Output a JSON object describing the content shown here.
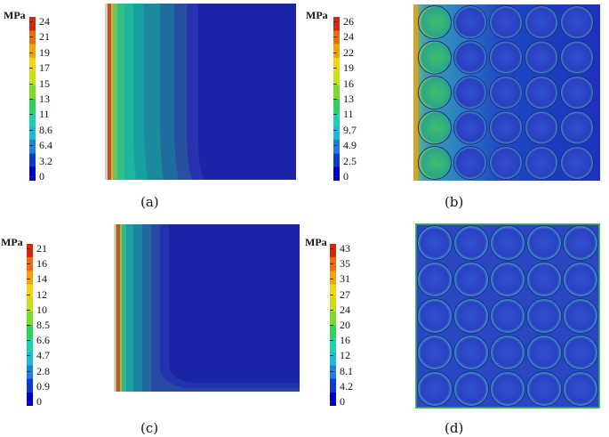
{
  "panels": [
    {
      "id": "a",
      "caption": "(a)",
      "colorbar": {
        "unit": "MPa",
        "ticks": [
          "24",
          "21",
          "19",
          "17",
          "15",
          "13",
          "11",
          "8.6",
          "6.4",
          "3.2",
          "0"
        ]
      }
    },
    {
      "id": "b",
      "caption": "(b)",
      "colorbar": {
        "unit": "MPa",
        "ticks": [
          "26",
          "24",
          "22",
          "19",
          "16",
          "13",
          "11",
          "9.7",
          "4.9",
          "2.5",
          "0"
        ]
      }
    },
    {
      "id": "c",
      "caption": "(c)",
      "colorbar": {
        "unit": "MPa",
        "ticks": [
          "21",
          "16",
          "14",
          "12",
          "10",
          "8.5",
          "6.6",
          "4.7",
          "2.8",
          "0.9",
          "0"
        ]
      }
    },
    {
      "id": "d",
      "caption": "(d)",
      "colorbar": {
        "unit": "MPa",
        "ticks": [
          "43",
          "35",
          "31",
          "27",
          "24",
          "20",
          "16",
          "12",
          "8.1",
          "4.2",
          "0"
        ]
      }
    }
  ],
  "colormap": [
    "#0000cc",
    "#0a3ad6",
    "#1f7fe0",
    "#20b8d8",
    "#1ed3a9",
    "#2bd35a",
    "#7bdc25",
    "#c7e01a",
    "#f2d40f",
    "#f5a10c",
    "#ee6a0a",
    "#d9260a"
  ]
}
